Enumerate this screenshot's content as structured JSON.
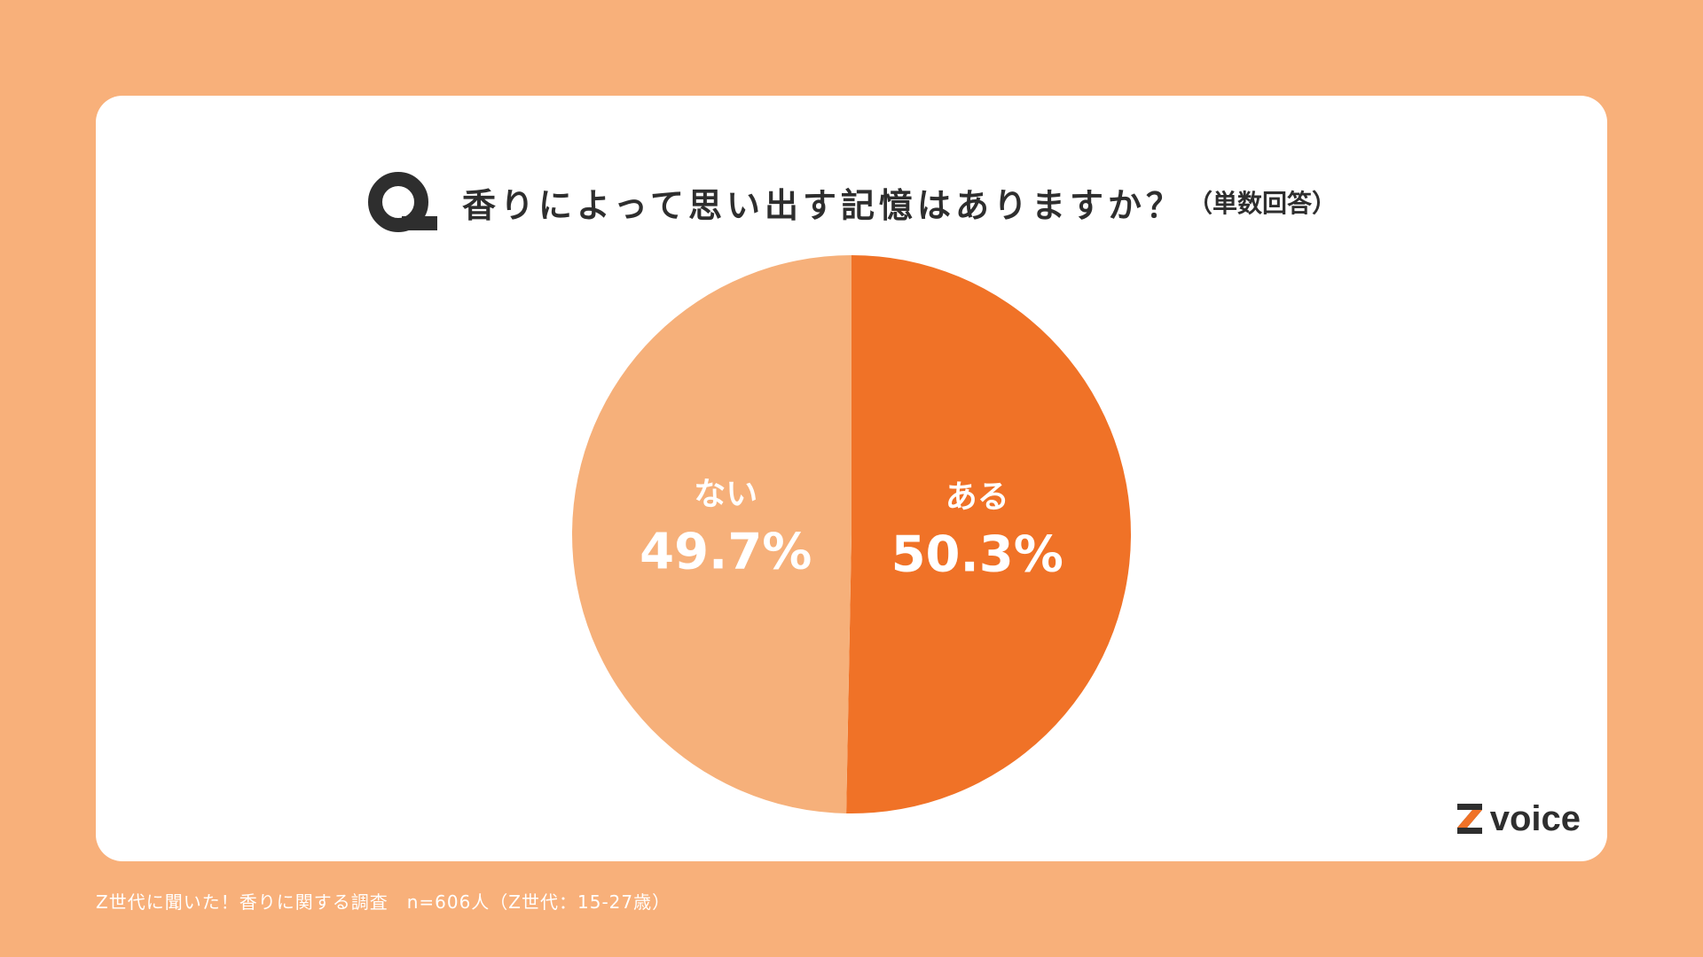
{
  "question": {
    "title": "香りによって思い出す記憶はありますか？",
    "note": "（単数回答）"
  },
  "colors": {
    "background": "#F8B07A",
    "card": "#FFFFFF",
    "slice_yes": "#F07227",
    "slice_no": "#F6B07A",
    "text_dark": "#2E2E2E",
    "logo_accent": "#F07227"
  },
  "logo": {
    "text": "voice"
  },
  "footer": {
    "text": "Z世代に聞いた！香りに関する調査　n=606人（Z世代：15-27歳）"
  },
  "chart_data": {
    "type": "pie",
    "title": "香りによって思い出す記憶はありますか？",
    "slices": [
      {
        "label": "ある",
        "value": 50.3,
        "display": "50.3%",
        "color": "#F07227"
      },
      {
        "label": "ない",
        "value": 49.7,
        "display": "49.7%",
        "color": "#F6B07A"
      }
    ]
  }
}
